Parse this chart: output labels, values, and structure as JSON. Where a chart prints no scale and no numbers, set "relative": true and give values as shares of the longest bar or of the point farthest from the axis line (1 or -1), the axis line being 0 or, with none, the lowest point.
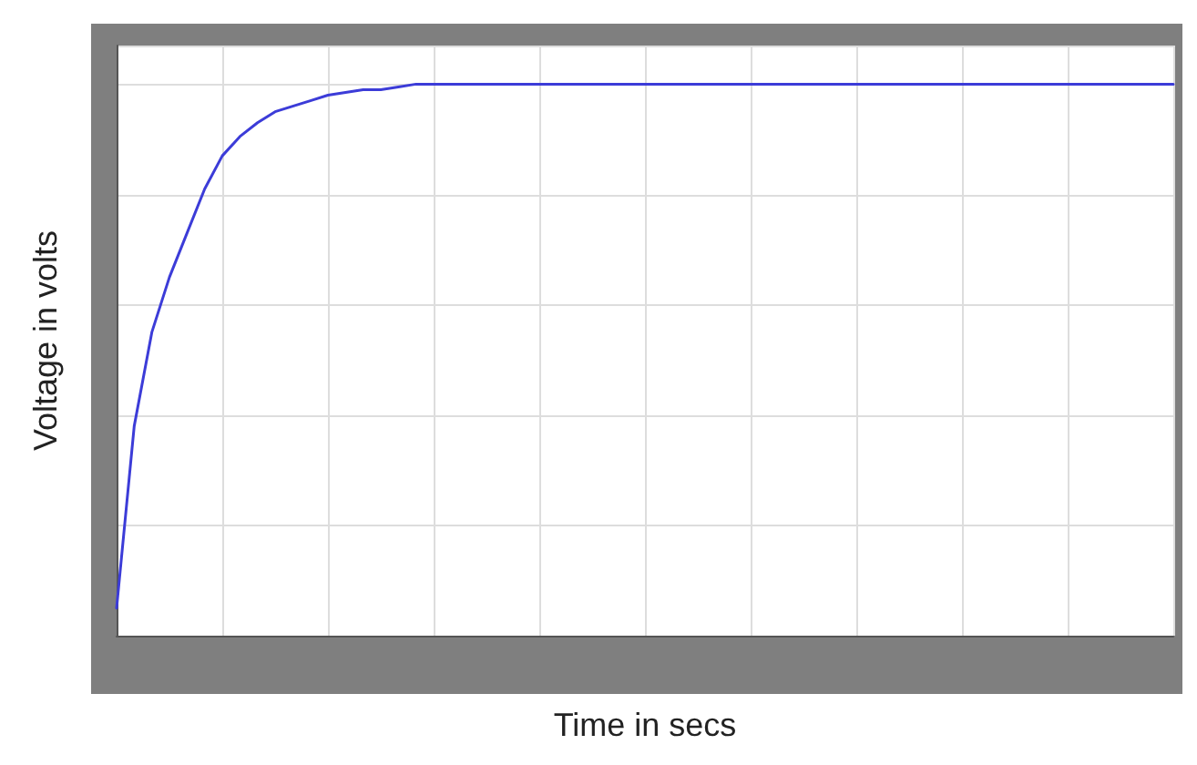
{
  "chart_data": {
    "type": "line",
    "relative": true,
    "xlabel": "Time in secs",
    "ylabel": "Voltage in volts",
    "grid": true,
    "marker": "none",
    "line_style": "solid",
    "categories": [
      null,
      null,
      null,
      null,
      null,
      null,
      null,
      null,
      null,
      null,
      null,
      null,
      null,
      null,
      null,
      null,
      null,
      null,
      null,
      null,
      null,
      null,
      null,
      null,
      null,
      null,
      null,
      null,
      null,
      null,
      null,
      null,
      null,
      null,
      null,
      null,
      null,
      null,
      null,
      null,
      null,
      null,
      null,
      null,
      null,
      null,
      null,
      null,
      null,
      null,
      null,
      null,
      null,
      null,
      null,
      null,
      null,
      null,
      null,
      null,
      null
    ],
    "series": [
      {
        "color": "#3c3cd8",
        "values": [
          0.05,
          0.38,
          0.55,
          0.65,
          0.73,
          0.81,
          0.87,
          0.905,
          0.93,
          0.95,
          0.96,
          0.97,
          0.98,
          0.985,
          0.99,
          0.99,
          0.995,
          1,
          1,
          1,
          1,
          1,
          1,
          1,
          1,
          1,
          1,
          1,
          1,
          1,
          1,
          1,
          1,
          1,
          1,
          1,
          1,
          1,
          1,
          1,
          1,
          1,
          1,
          1,
          1,
          1,
          1,
          1,
          1,
          1,
          1,
          1,
          1,
          1,
          1,
          1,
          1,
          1,
          1,
          1,
          1
        ]
      }
    ]
  }
}
